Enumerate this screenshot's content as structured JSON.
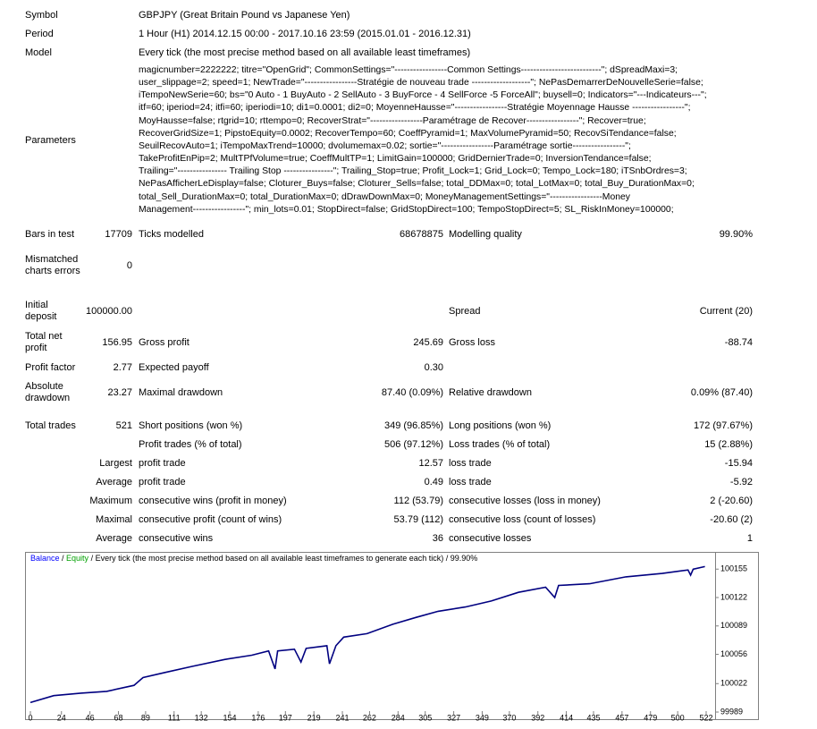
{
  "header": [
    {
      "label": "Symbol",
      "value": "GBPJPY (Great Britain Pound vs Japanese Yen)"
    },
    {
      "label": "Period",
      "value": "1 Hour (H1) 2014.12.15 00:00 - 2017.10.16 23:59 (2015.01.01 - 2016.12.31)"
    },
    {
      "label": "Model",
      "value": "Every tick (the most precise method based on all available least timeframes)"
    }
  ],
  "parameters": {
    "label": "Parameters",
    "lines": [
      "magicnumber=2222222; titre=\"OpenGrid\"; CommonSettings=\"-----------------Common Settings--------------------------\"; dSpreadMaxi=3;",
      "user_slippage=2; speed=1; NewTrade=\"-----------------Stratégie de nouveau trade -------------------\"; NePasDemarrerDeNouvelleSerie=false;",
      "iTempoNewSerie=60; bs=\"0 Auto - 1 BuyAuto - 2 SellAuto - 3 BuyForce - 4 SellForce -5 ForceAll\"; buysell=0; Indicators=\"---Indicateurs---\";",
      "itf=60; iperiod=24; itfi=60; iperiodi=10; di1=0.0001; di2=0; MoyenneHausse=\"-----------------Stratégie Moyennage Hausse -----------------\";",
      "MoyHausse=false; rtgrid=10; rttempo=0; RecoverStrat=\"-----------------Paramétrage de Recover-----------------\"; Recover=true;",
      "RecoverGridSize=1; PipstoEquity=0.0002; RecoverTempo=60; CoeffPyramid=1; MaxVolumePyramid=50; RecovSiTendance=false;",
      "SeuilRecovAuto=1; iTempoMaxTrend=10000; dvolumemax=0.02; sortie=\"-----------------Paramétrage sortie-----------------\";",
      "TakeProfitEnPip=2; MultTPfVolume=true; CoeffMultTP=1; LimitGain=100000; GridDernierTrade=0; InversionTendance=false;",
      "Trailing=\"---------------- Trailing Stop ----------------\"; Trailing_Stop=true; Profit_Lock=1; Grid_Lock=0; Tempo_Lock=180; iTSnbOrdres=3;",
      "NePasAfficherLeDisplay=false; Cloturer_Buys=false; Cloturer_Sells=false; total_DDMax=0; total_LotMax=0; total_Buy_DurationMax=0;",
      "total_Sell_DurationMax=0; total_DurationMax=0; dDrawDownMax=0; MoneyManagementSettings=\"-----------------Money",
      "Management-----------------\"; min_lots=0.01; StopDirect=false; GridStopDirect=100; TempoStopDirect=5; SL_RiskInMoney=100000;"
    ]
  },
  "stats": [
    [
      "Bars in test",
      "17709",
      "Ticks modelled",
      "68678875",
      "Modelling quality",
      "99.90%"
    ],
    [
      "Mismatched charts errors",
      "0",
      null,
      null,
      null,
      null
    ],
    [
      "Initial deposit",
      "100000.00",
      null,
      null,
      "Spread",
      "Current (20)"
    ],
    [
      "Total net profit",
      "156.95",
      "Gross profit",
      "245.69",
      "Gross loss",
      "-88.74"
    ],
    [
      "Profit factor",
      "2.77",
      "Expected payoff",
      "0.30",
      null,
      null
    ],
    [
      "Absolute drawdown",
      "23.27",
      "Maximal drawdown",
      "87.40 (0.09%)",
      "Relative drawdown",
      "0.09% (87.40)"
    ],
    [
      "Total trades",
      "521",
      "Short positions (won %)",
      "349 (96.85%)",
      "Long positions (won %)",
      "172 (97.67%)"
    ],
    [
      null,
      null,
      "Profit trades (% of total)",
      "506 (97.12%)",
      "Loss trades (% of total)",
      "15 (2.88%)"
    ],
    [
      null,
      "Largest",
      "profit trade",
      "12.57",
      "loss trade",
      "-15.94"
    ],
    [
      null,
      "Average",
      "profit trade",
      "0.49",
      "loss trade",
      "-5.92"
    ],
    [
      null,
      "Maximum",
      "consecutive wins (profit in money)",
      "112 (53.79)",
      "consecutive losses (loss in money)",
      "2 (-20.60)"
    ],
    [
      null,
      "Maximal",
      "consecutive profit (count of wins)",
      "53.79 (112)",
      "consecutive loss (count of losses)",
      "-20.60 (2)"
    ],
    [
      null,
      "Average",
      "consecutive wins",
      "36",
      "consecutive losses",
      "1"
    ]
  ],
  "chart_data": {
    "type": "line",
    "model": "Every tick (the most precise method based on all available least timeframes to generate each tick)",
    "quality": "99.90%",
    "x": [
      0,
      18,
      39,
      59,
      80,
      87,
      104,
      125,
      150,
      171,
      184,
      189,
      191,
      204,
      209,
      213,
      229,
      231,
      236,
      242,
      260,
      280,
      298,
      315,
      336,
      356,
      377,
      398,
      405,
      408,
      432,
      460,
      488,
      508,
      510,
      512,
      521
    ],
    "series": [
      {
        "name": "Balance",
        "color": "#000080",
        "label_color": "#0000ff",
        "values": [
          100000,
          100008,
          100011,
          100013,
          100020,
          100029,
          100035,
          100042,
          100050,
          100055,
          100060,
          100039,
          100060,
          100062,
          100047,
          100063,
          100066,
          100045,
          100066,
          100076,
          100080,
          100091,
          100099,
          100106,
          100111,
          100118,
          100128,
          100134,
          100122,
          100136,
          100138,
          100146,
          100150,
          100154,
          100148,
          100155,
          100158
        ]
      },
      {
        "name": "Equity",
        "color": "#00a000",
        "label_color": "#00a000"
      }
    ],
    "xlim": [
      0,
      522
    ],
    "ylim": [
      99988,
      100175
    ],
    "xticks": [
      0,
      24,
      46,
      68,
      89,
      111,
      132,
      154,
      176,
      197,
      219,
      241,
      262,
      284,
      305,
      327,
      349,
      370,
      392,
      414,
      435,
      457,
      479,
      500,
      522
    ],
    "yticks": [
      99989,
      100022,
      100056,
      100089,
      100122,
      100155
    ]
  }
}
